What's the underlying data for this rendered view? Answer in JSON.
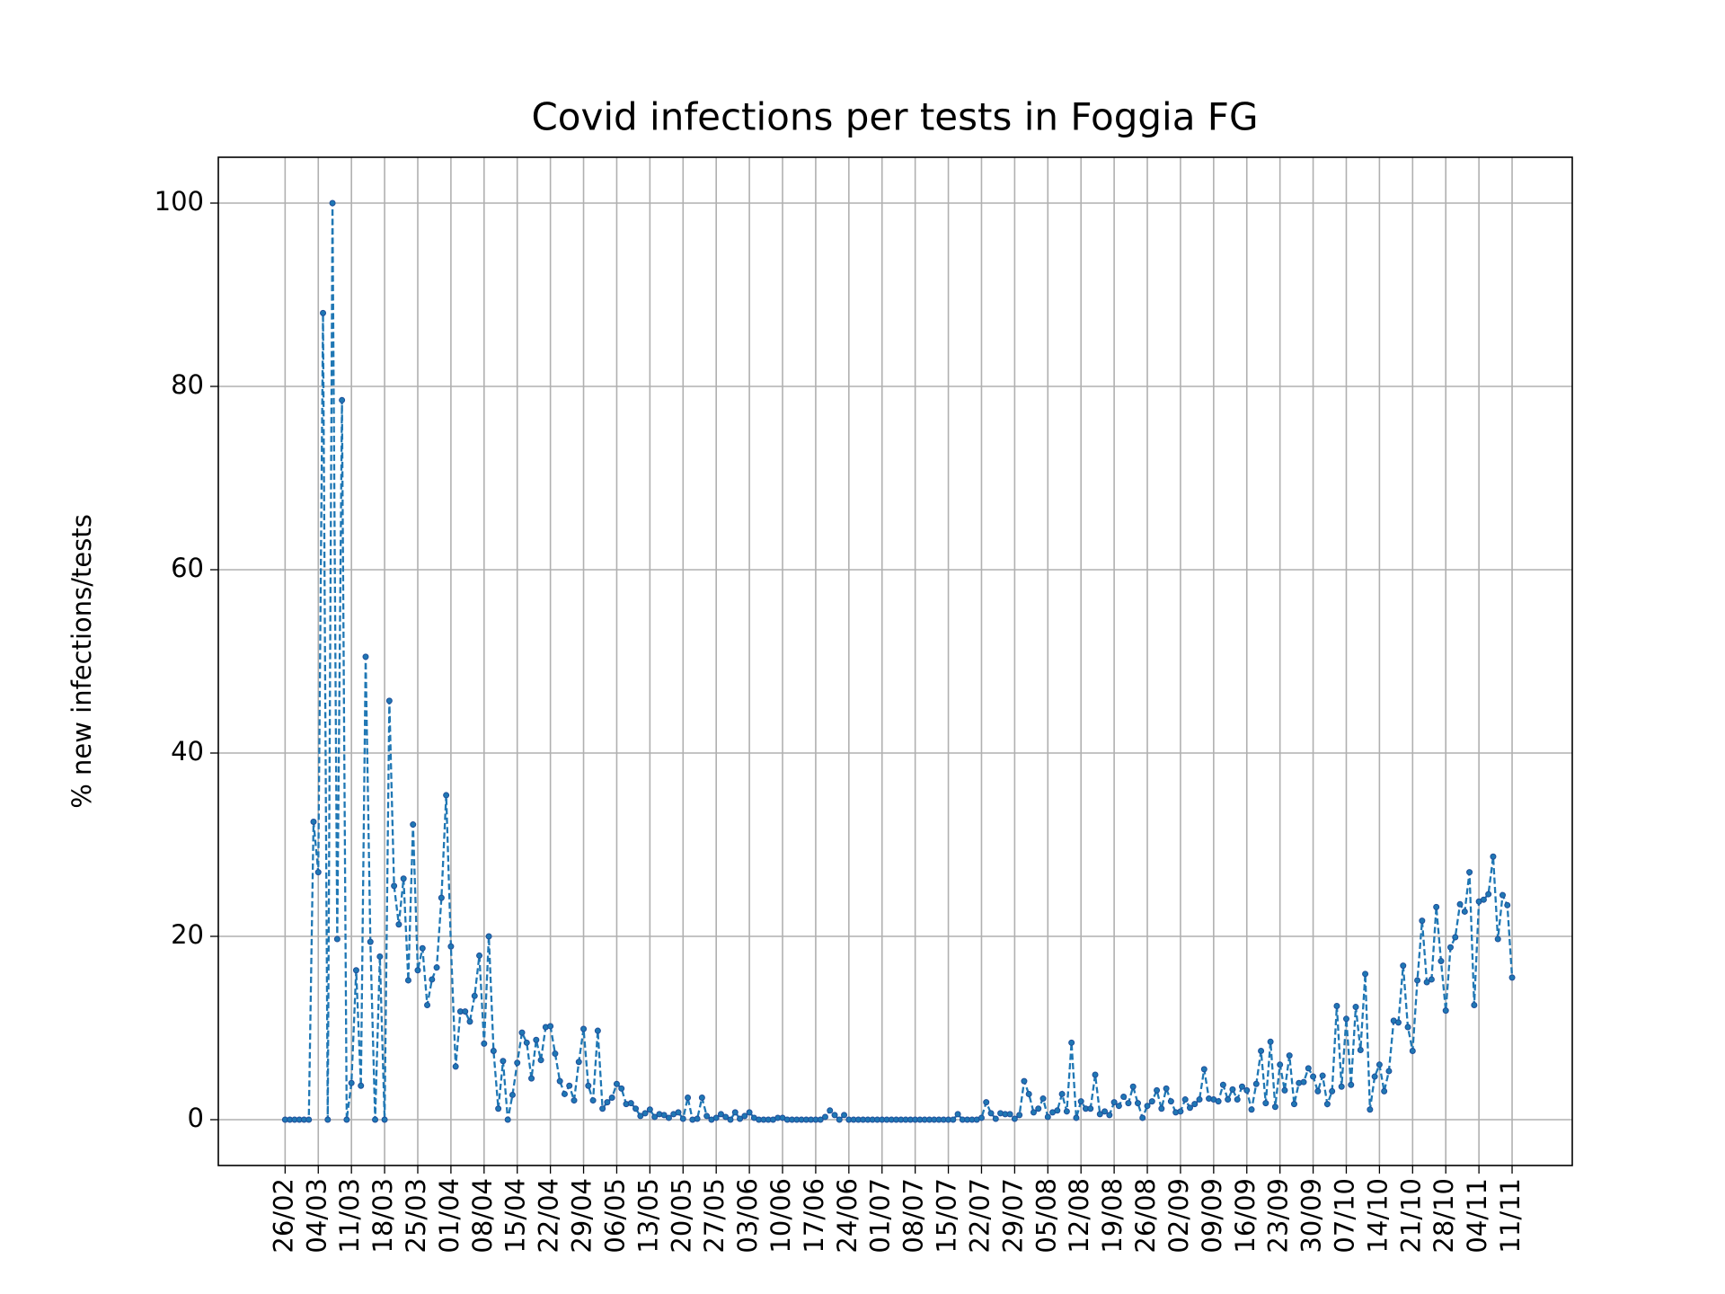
{
  "chart_data": {
    "type": "line",
    "title": "Covid infections per tests in Foggia FG",
    "y_label": "% new infections/tests",
    "categories": [
      "26/02",
      null,
      null,
      null,
      null,
      null,
      null,
      "04/03",
      null,
      null,
      null,
      null,
      null,
      null,
      "11/03",
      null,
      null,
      null,
      null,
      null,
      null,
      "18/03",
      null,
      null,
      null,
      null,
      null,
      null,
      "25/03",
      null,
      null,
      null,
      null,
      null,
      null,
      "01/04",
      null,
      null,
      null,
      null,
      null,
      null,
      "08/04",
      null,
      null,
      null,
      null,
      null,
      null,
      "15/04",
      null,
      null,
      null,
      null,
      null,
      null,
      "22/04",
      null,
      null,
      null,
      null,
      null,
      null,
      "29/04",
      null,
      null,
      null,
      null,
      null,
      null,
      "06/05",
      null,
      null,
      null,
      null,
      null,
      null,
      "13/05",
      null,
      null,
      null,
      null,
      null,
      null,
      "20/05",
      null,
      null,
      null,
      null,
      null,
      null,
      "27/05",
      null,
      null,
      null,
      null,
      null,
      null,
      "03/06",
      null,
      null,
      null,
      null,
      null,
      null,
      "10/06",
      null,
      null,
      null,
      null,
      null,
      null,
      "17/06",
      null,
      null,
      null,
      null,
      null,
      null,
      "24/06",
      null,
      null,
      null,
      null,
      null,
      null,
      "01/07",
      null,
      null,
      null,
      null,
      null,
      null,
      "08/07",
      null,
      null,
      null,
      null,
      null,
      null,
      "15/07",
      null,
      null,
      null,
      null,
      null,
      null,
      "22/07",
      null,
      null,
      null,
      null,
      null,
      null,
      "29/07",
      null,
      null,
      null,
      null,
      null,
      null,
      "05/08",
      null,
      null,
      null,
      null,
      null,
      null,
      "12/08",
      null,
      null,
      null,
      null,
      null,
      null,
      "19/08",
      null,
      null,
      null,
      null,
      null,
      null,
      "26/08",
      null,
      null,
      null,
      null,
      null,
      null,
      "02/09",
      null,
      null,
      null,
      null,
      null,
      null,
      "09/09",
      null,
      null,
      null,
      null,
      null,
      null,
      "16/09",
      null,
      null,
      null,
      null,
      null,
      null,
      "23/09",
      null,
      null,
      null,
      null,
      null,
      null,
      "30/09",
      null,
      null,
      null,
      null,
      null,
      null,
      "07/10",
      null,
      null,
      null,
      null,
      null,
      null,
      "14/10",
      null,
      null,
      null,
      null,
      null,
      null,
      "21/10",
      null,
      null,
      null,
      null,
      null,
      null,
      "28/10",
      null,
      null,
      null,
      null,
      null,
      null,
      "04/11",
      null,
      null,
      null,
      null,
      null,
      null,
      "11/11"
    ],
    "values": [
      0,
      0,
      0,
      0,
      0,
      0,
      32.5,
      27,
      88,
      0,
      100,
      19.7,
      78.5,
      0,
      4,
      16.3,
      3.7,
      50.5,
      19.4,
      0,
      17.8,
      0,
      45.7,
      25.5,
      21.3,
      26.3,
      15.2,
      32.2,
      16.3,
      18.7,
      12.5,
      15.3,
      16.6,
      24.2,
      35.4,
      18.9,
      5.8,
      11.8,
      11.8,
      10.7,
      13.5,
      17.9,
      8.3,
      20,
      7.5,
      1.2,
      6.4,
      0,
      2.7,
      6.2,
      9.5,
      8.4,
      4.5,
      8.7,
      6.5,
      10.1,
      10.2,
      7.2,
      4.2,
      2.8,
      3.7,
      2.1,
      6.3,
      9.9,
      3.7,
      2.1,
      9.7,
      1.2,
      1.9,
      2.4,
      3.9,
      3.4,
      1.7,
      1.8,
      1.2,
      0.4,
      0.7,
      1.1,
      0.3,
      0.6,
      0.5,
      0.2,
      0.6,
      0.8,
      0.1,
      2.4,
      0,
      0.1,
      2.4,
      0.4,
      0,
      0.2,
      0.6,
      0.3,
      0,
      0.8,
      0.1,
      0.4,
      0.8,
      0.2,
      0,
      0,
      0,
      0,
      0.2,
      0.2,
      0,
      0,
      0,
      0,
      0,
      0,
      0,
      0,
      0.3,
      1.0,
      0.5,
      0,
      0.5,
      0,
      0,
      0,
      0,
      0,
      0,
      0,
      0,
      0,
      0,
      0,
      0,
      0,
      0,
      0,
      0,
      0,
      0,
      0,
      0,
      0,
      0,
      0,
      0.6,
      0,
      0,
      0,
      0,
      0.2,
      1.9,
      0.7,
      0.1,
      0.7,
      0.6,
      0.6,
      0.1,
      0.5,
      4.2,
      2.8,
      0.8,
      1.2,
      2.3,
      0.3,
      0.8,
      1.0,
      2.8,
      0.9,
      8.4,
      0.2,
      2.0,
      1.2,
      1.2,
      4.9,
      0.6,
      0.9,
      0.5,
      1.9,
      1.5,
      2.5,
      1.8,
      3.6,
      1.8,
      0.2,
      1.5,
      2.0,
      3.2,
      1.2,
      3.4,
      2.0,
      0.8,
      0.9,
      2.2,
      1.3,
      1.7,
      2.2,
      5.5,
      2.3,
      2.2,
      2.0,
      3.8,
      2.2,
      3.3,
      2.2,
      3.6,
      3.2,
      1.1,
      3.9,
      7.5,
      1.8,
      8.5,
      1.4,
      6.0,
      3.2,
      7.0,
      1.7,
      4.0,
      4.1,
      5.6,
      4.7,
      3.1,
      4.8,
      1.7,
      3.1,
      12.4,
      3.6,
      11,
      3.8,
      12.3,
      7.6,
      15.9,
      1.1,
      4.7,
      6.0,
      3.1,
      5.3,
      10.8,
      10.6,
      16.8,
      10.1,
      7.5,
      15.2,
      21.7,
      15.0,
      15.3,
      23.2,
      17.3,
      11.9,
      18.8,
      19.9,
      23.5,
      22.7,
      27,
      12.5,
      23.8,
      24,
      24.6,
      28.7,
      19.7,
      24.5,
      23.4,
      15.5
    ],
    "color": "#1f77b4",
    "ylim": [
      -5,
      105
    ],
    "yticks": [
      0,
      20,
      40,
      60,
      80,
      100
    ],
    "grid": true
  }
}
